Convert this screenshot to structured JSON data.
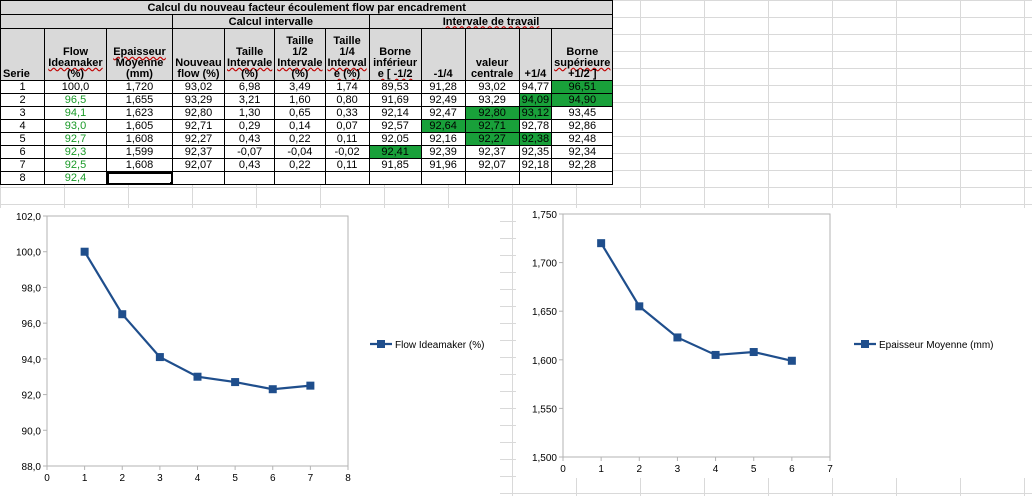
{
  "table": {
    "title": "Calcul du nouveau facteur écoulement flow par encadrement",
    "group1": "Calcul intervalle",
    "group2": "Intervale de travail",
    "headers": {
      "serie": "Serie",
      "flow": [
        "Flow",
        "Ideamaker",
        "(%)"
      ],
      "epaisseur": [
        "Epaisseur",
        "Moyenne",
        "(mm)"
      ],
      "nouveau": [
        "Nouveau",
        "flow (%)"
      ],
      "taille": [
        "Taille",
        "Intervale",
        "(%)"
      ],
      "taille12": [
        "Taille 1/2",
        "Intervale",
        "(%)"
      ],
      "taille14": [
        "Taille",
        "1/4",
        "Interval",
        "e (%)"
      ],
      "borne_inf": [
        "Borne",
        "inférieur",
        "e [ -1/2"
      ],
      "q_minus": "-1/4",
      "valeur": [
        "valeur",
        "centrale"
      ],
      "q_plus": "+1/4",
      "borne_sup": [
        "Borne",
        "supérieure",
        "+1/2 ]"
      ]
    },
    "rows": [
      {
        "serie": "1",
        "flow": "100,0",
        "ep": "1,720",
        "nf": "93,02",
        "ti": "6,98",
        "t12": "3,49",
        "t14": "1,74",
        "bi": "89,53",
        "qm": "91,28",
        "vc": "93,02",
        "qp": "94,77",
        "bs": "96,51",
        "green": [
          "bs"
        ],
        "flow_green": false
      },
      {
        "serie": "2",
        "flow": "96,5",
        "ep": "1,655",
        "nf": "93,29",
        "ti": "3,21",
        "t12": "1,60",
        "t14": "0,80",
        "bi": "91,69",
        "qm": "92,49",
        "vc": "93,29",
        "qp": "94,09",
        "bs": "94,90",
        "green": [
          "qp",
          "bs"
        ],
        "flow_green": true
      },
      {
        "serie": "3",
        "flow": "94,1",
        "ep": "1,623",
        "nf": "92,80",
        "ti": "1,30",
        "t12": "0,65",
        "t14": "0,33",
        "bi": "92,14",
        "qm": "92,47",
        "vc": "92,80",
        "qp": "93,12",
        "bs": "93,45",
        "green": [
          "vc",
          "qp"
        ],
        "flow_green": true
      },
      {
        "serie": "4",
        "flow": "93,0",
        "ep": "1,605",
        "nf": "92,71",
        "ti": "0,29",
        "t12": "0,14",
        "t14": "0,07",
        "bi": "92,57",
        "qm": "92,64",
        "vc": "92,71",
        "qp": "92,78",
        "bs": "92,86",
        "green": [
          "qm",
          "vc"
        ],
        "flow_green": true
      },
      {
        "serie": "5",
        "flow": "92,7",
        "ep": "1,608",
        "nf": "92,27",
        "ti": "0,43",
        "t12": "0,22",
        "t14": "0,11",
        "bi": "92,05",
        "qm": "92,16",
        "vc": "92,27",
        "qp": "92,38",
        "bs": "92,48",
        "green": [
          "vc",
          "qp"
        ],
        "flow_green": true
      },
      {
        "serie": "6",
        "flow": "92,3",
        "ep": "1,599",
        "nf": "92,37",
        "ti": "-0,07",
        "t12": "-0,04",
        "t14": "-0,02",
        "bi": "92,41",
        "qm": "92,39",
        "vc": "92,37",
        "qp": "92,35",
        "bs": "92,34",
        "green": [
          "bi"
        ],
        "flow_green": true
      },
      {
        "serie": "7",
        "flow": "92,5",
        "ep": "1,608",
        "nf": "92,07",
        "ti": "0,43",
        "t12": "0,22",
        "t14": "0,11",
        "bi": "91,85",
        "qm": "91,96",
        "vc": "92,07",
        "qp": "92,18",
        "bs": "92,28",
        "green": [],
        "flow_green": true
      },
      {
        "serie": "8",
        "flow": "92,4",
        "ep": "",
        "nf": "",
        "ti": "",
        "t12": "",
        "t14": "",
        "bi": "",
        "qm": "",
        "vc": "",
        "qp": "",
        "bs": "",
        "green": [],
        "flow_green": true
      }
    ]
  },
  "chart_data": [
    {
      "type": "line",
      "series": [
        {
          "name": "Flow Ideamaker (%)",
          "x": [
            1,
            2,
            3,
            4,
            5,
            6,
            7
          ],
          "values": [
            100.0,
            96.5,
            94.1,
            93.0,
            92.7,
            92.3,
            92.5
          ]
        }
      ],
      "xlim": [
        0,
        8
      ],
      "ylim": [
        88,
        102
      ],
      "xticks": [
        "0",
        "1",
        "2",
        "3",
        "4",
        "5",
        "6",
        "7",
        "8"
      ],
      "yticks": [
        "88,0",
        "90,0",
        "92,0",
        "94,0",
        "96,0",
        "98,0",
        "100,0",
        "102,0"
      ],
      "ytick_values": [
        88,
        90,
        92,
        94,
        96,
        98,
        100,
        102
      ],
      "legend": "right",
      "color": "#1f4e8c"
    },
    {
      "type": "line",
      "series": [
        {
          "name": "Epaisseur Moyenne (mm)",
          "x": [
            1,
            2,
            3,
            4,
            5,
            6
          ],
          "values": [
            1.72,
            1.655,
            1.623,
            1.605,
            1.608,
            1.599
          ]
        }
      ],
      "xlim": [
        0,
        7
      ],
      "ylim": [
        1.5,
        1.75
      ],
      "xticks": [
        "0",
        "1",
        "2",
        "3",
        "4",
        "5",
        "6",
        "7"
      ],
      "yticks": [
        "1,500",
        "1,550",
        "1,600",
        "1,650",
        "1,700",
        "1,750"
      ],
      "ytick_values": [
        1.5,
        1.55,
        1.6,
        1.65,
        1.7,
        1.75
      ],
      "legend": "right",
      "color": "#1f4e8c"
    }
  ]
}
